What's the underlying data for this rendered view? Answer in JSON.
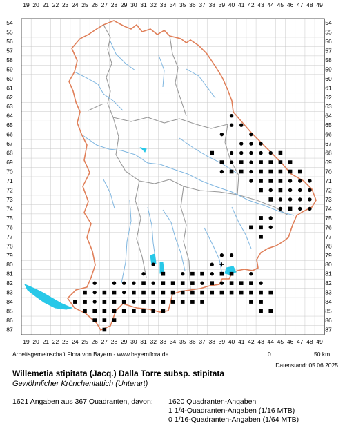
{
  "map": {
    "x_labels": [
      "19",
      "20",
      "21",
      "22",
      "23",
      "24",
      "25",
      "26",
      "27",
      "28",
      "29",
      "30",
      "31",
      "32",
      "33",
      "34",
      "35",
      "36",
      "37",
      "38",
      "39",
      "40",
      "41",
      "42",
      "43",
      "44",
      "45",
      "46",
      "47",
      "48",
      "49"
    ],
    "y_labels": [
      "54",
      "55",
      "56",
      "57",
      "58",
      "59",
      "60",
      "61",
      "62",
      "63",
      "64",
      "65",
      "66",
      "67",
      "68",
      "69",
      "70",
      "71",
      "72",
      "73",
      "74",
      "75",
      "76",
      "77",
      "78",
      "79",
      "80",
      "81",
      "82",
      "83",
      "84",
      "85",
      "86",
      "87"
    ],
    "colors": {
      "border": "#e0805a",
      "districts": "#999999",
      "rivers": "#7fb6e0",
      "lakes": "#28c8e8",
      "grid": "#c8c8c8"
    },
    "records": {
      "quadrant_symbol": "filled square",
      "quarter_symbol": "filled circle",
      "sixteenth_symbol": "plus"
    }
  },
  "footer": {
    "credit": "Arbeitsgemeinschaft Flora von Bayern - www.bayernflora.de",
    "scale_start": "0",
    "scale_end": "50 km",
    "date": "Datenstand: 05.06.2025",
    "title": "Willemetia stipitata (Jacq.) Dalla Torre subsp. stipitata",
    "subtitle": "Gewöhnlicher Krönchenlattich (Unterart)",
    "summary": "1621 Angaben aus 367 Quadranten, davon:",
    "breakdown": [
      "1620 Quadranten-Angaben",
      "1 1/4-Quadranten-Angaben (1/16 MTB)",
      "0 1/16-Quadranten-Angaben (1/64 MTB)"
    ]
  }
}
